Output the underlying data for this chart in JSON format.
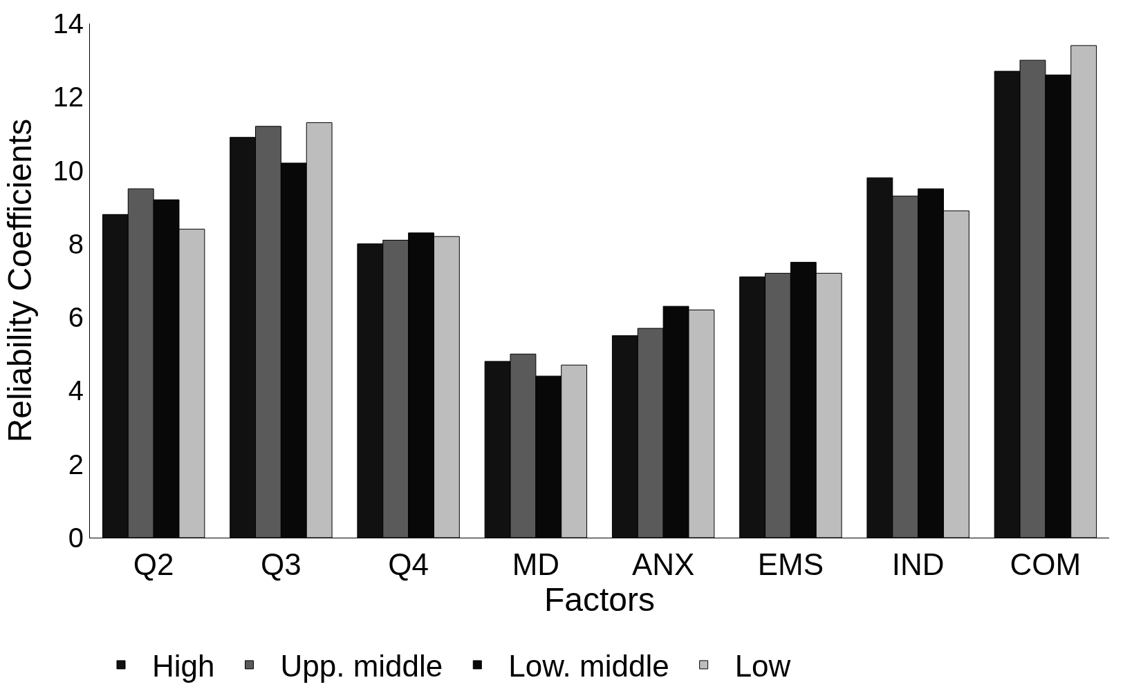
{
  "chart_data": {
    "type": "bar",
    "xlabel": "Factors",
    "ylabel": "Reliability Coefficients",
    "categories": [
      "Q2",
      "Q3",
      "Q4",
      "MD",
      "ANX",
      "EMS",
      "IND",
      "COM"
    ],
    "series": [
      {
        "name": "High",
        "color": "#111111",
        "values": [
          8.8,
          10.9,
          8.0,
          4.8,
          5.5,
          7.1,
          9.8,
          12.7
        ]
      },
      {
        "name": "Upp. middle",
        "color": "#5a5a5a",
        "values": [
          9.5,
          11.2,
          8.1,
          5.0,
          5.7,
          7.2,
          9.3,
          13.0
        ]
      },
      {
        "name": "Low. middle",
        "color": "#080808",
        "values": [
          9.2,
          10.2,
          8.3,
          4.4,
          6.3,
          7.5,
          9.5,
          12.6
        ]
      },
      {
        "name": "Low",
        "color": "#bdbdbd",
        "values": [
          8.4,
          11.3,
          8.2,
          4.7,
          6.2,
          7.2,
          8.9,
          13.4
        ]
      }
    ],
    "ylim": [
      0,
      14
    ],
    "yticks": [
      0,
      2,
      4,
      6,
      8,
      10,
      12,
      14
    ],
    "legend": "bottom"
  }
}
